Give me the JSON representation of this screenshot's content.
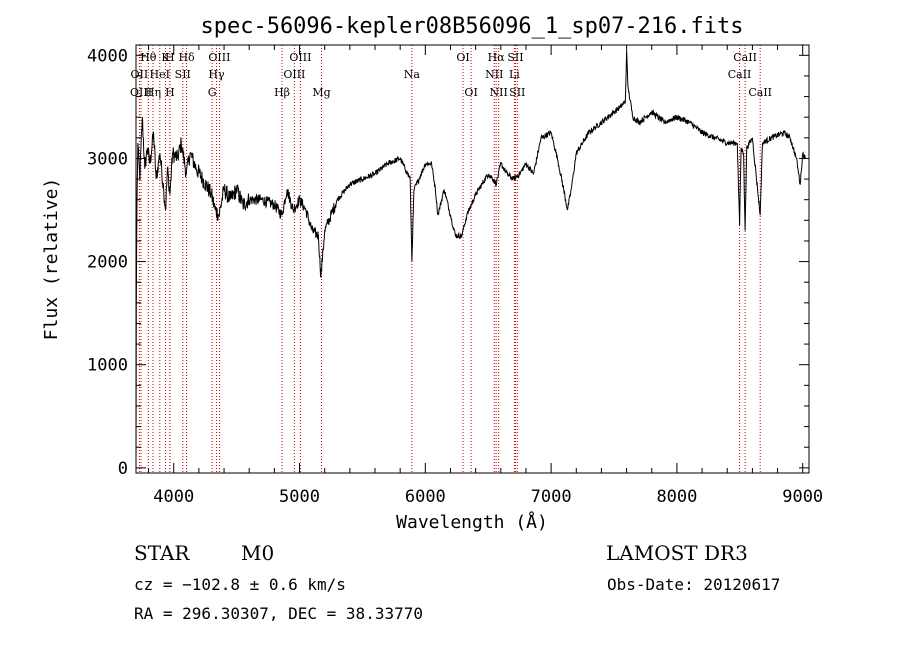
{
  "chart_data": {
    "type": "line",
    "title": "spec-56096-kepler08B56096_1_sp07-216.fits",
    "xlabel": "Wavelength (Å)",
    "ylabel": "Flux (relative)",
    "xlim": [
      3700,
      9050
    ],
    "ylim": [
      -50,
      4100
    ],
    "x_ticks": [
      4000,
      5000,
      6000,
      7000,
      8000,
      9000
    ],
    "y_ticks": [
      0,
      1000,
      2000,
      3000,
      4000
    ],
    "series": [
      {
        "name": "flux",
        "anchors": [
          [
            3700,
            0
          ],
          [
            3702,
            1500
          ],
          [
            3708,
            2600
          ],
          [
            3715,
            3150
          ],
          [
            3730,
            2800
          ],
          [
            3750,
            3400
          ],
          [
            3770,
            2900
          ],
          [
            3790,
            3100
          ],
          [
            3810,
            2950
          ],
          [
            3840,
            3250
          ],
          [
            3860,
            2800
          ],
          [
            3890,
            3050
          ],
          [
            3920,
            2700
          ],
          [
            3935,
            2500
          ],
          [
            3950,
            2900
          ],
          [
            3970,
            2650
          ],
          [
            3990,
            3050
          ],
          [
            4030,
            3000
          ],
          [
            4060,
            3150
          ],
          [
            4100,
            2850
          ],
          [
            4130,
            3050
          ],
          [
            4180,
            2900
          ],
          [
            4230,
            2800
          ],
          [
            4300,
            2650
          ],
          [
            4330,
            2500
          ],
          [
            4360,
            2450
          ],
          [
            4400,
            2700
          ],
          [
            4450,
            2600
          ],
          [
            4500,
            2700
          ],
          [
            4550,
            2550
          ],
          [
            4600,
            2600
          ],
          [
            4700,
            2600
          ],
          [
            4800,
            2550
          ],
          [
            4860,
            2450
          ],
          [
            4900,
            2700
          ],
          [
            4950,
            2500
          ],
          [
            5000,
            2600
          ],
          [
            5050,
            2500
          ],
          [
            5100,
            2300
          ],
          [
            5150,
            2250
          ],
          [
            5170,
            1850
          ],
          [
            5200,
            2300
          ],
          [
            5300,
            2600
          ],
          [
            5400,
            2750
          ],
          [
            5500,
            2800
          ],
          [
            5600,
            2850
          ],
          [
            5700,
            2950
          ],
          [
            5800,
            3000
          ],
          [
            5880,
            2800
          ],
          [
            5893,
            2000
          ],
          [
            5910,
            2700
          ],
          [
            5950,
            2800
          ],
          [
            6000,
            2950
          ],
          [
            6050,
            2950
          ],
          [
            6080,
            2700
          ],
          [
            6100,
            2450
          ],
          [
            6150,
            2700
          ],
          [
            6200,
            2450
          ],
          [
            6240,
            2250
          ],
          [
            6290,
            2250
          ],
          [
            6330,
            2450
          ],
          [
            6400,
            2650
          ],
          [
            6450,
            2750
          ],
          [
            6500,
            2850
          ],
          [
            6540,
            2800
          ],
          [
            6563,
            2750
          ],
          [
            6600,
            2950
          ],
          [
            6650,
            2850
          ],
          [
            6700,
            2800
          ],
          [
            6750,
            2850
          ],
          [
            6800,
            2950
          ],
          [
            6860,
            2850
          ],
          [
            6920,
            3200
          ],
          [
            7000,
            3250
          ],
          [
            7050,
            3000
          ],
          [
            7100,
            2700
          ],
          [
            7130,
            2500
          ],
          [
            7160,
            2700
          ],
          [
            7200,
            3050
          ],
          [
            7300,
            3250
          ],
          [
            7400,
            3350
          ],
          [
            7500,
            3450
          ],
          [
            7550,
            3500
          ],
          [
            7590,
            3550
          ],
          [
            7600,
            4050
          ],
          [
            7610,
            3700
          ],
          [
            7650,
            3400
          ],
          [
            7700,
            3350
          ],
          [
            7800,
            3450
          ],
          [
            7900,
            3350
          ],
          [
            8000,
            3400
          ],
          [
            8100,
            3350
          ],
          [
            8200,
            3250
          ],
          [
            8300,
            3200
          ],
          [
            8400,
            3150
          ],
          [
            8480,
            3150
          ],
          [
            8498,
            2350
          ],
          [
            8510,
            3100
          ],
          [
            8530,
            3050
          ],
          [
            8542,
            2300
          ],
          [
            8555,
            3100
          ],
          [
            8600,
            3200
          ],
          [
            8662,
            2450
          ],
          [
            8680,
            3150
          ],
          [
            8750,
            3200
          ],
          [
            8850,
            3250
          ],
          [
            8900,
            3200
          ],
          [
            8950,
            3000
          ],
          [
            8980,
            2750
          ],
          [
            9000,
            3050
          ],
          [
            9020,
            3000
          ]
        ]
      }
    ],
    "spectral_lines": [
      {
        "label": "Hθ",
        "wavelength": 3798,
        "row": 1
      },
      {
        "label": "OII",
        "wavelength": 3727,
        "row": 2
      },
      {
        "label": "OIII",
        "wavelength": 3740,
        "row": 3
      },
      {
        "label": "K",
        "wavelength": 3934,
        "row": 1
      },
      {
        "label": "H",
        "wavelength": 3969,
        "row": 1
      },
      {
        "label": "HeI",
        "wavelength": 3889,
        "row": 2
      },
      {
        "label": "SII",
        "wavelength": 4072,
        "row": 2
      },
      {
        "label": "Hη",
        "wavelength": 3835,
        "row": 3
      },
      {
        "label": "Hδ",
        "wavelength": 4102,
        "row": 1
      },
      {
        "label": "H",
        "wavelength": 3970,
        "row": 3
      },
      {
        "label": "OIII",
        "wavelength": 4363,
        "row": 1
      },
      {
        "label": "Hγ",
        "wavelength": 4340,
        "row": 2
      },
      {
        "label": "G",
        "wavelength": 4305,
        "row": 3
      },
      {
        "label": "Hβ",
        "wavelength": 4861,
        "row": 3
      },
      {
        "label": "OIII",
        "wavelength": 5007,
        "row": 1
      },
      {
        "label": "OIII",
        "wavelength": 4959,
        "row": 2
      },
      {
        "label": "Mg",
        "wavelength": 5175,
        "row": 3
      },
      {
        "label": "Na",
        "wavelength": 5893,
        "row": 2
      },
      {
        "label": "OI",
        "wavelength": 6300,
        "row": 1
      },
      {
        "label": "OI",
        "wavelength": 6364,
        "row": 3
      },
      {
        "label": "Hα",
        "wavelength": 6563,
        "row": 1
      },
      {
        "label": "SII",
        "wavelength": 6717,
        "row": 1
      },
      {
        "label": "NII",
        "wavelength": 6548,
        "row": 2
      },
      {
        "label": "Li",
        "wavelength": 6708,
        "row": 2
      },
      {
        "label": "NII",
        "wavelength": 6583,
        "row": 3
      },
      {
        "label": "SII",
        "wavelength": 6731,
        "row": 3
      },
      {
        "label": "CaII",
        "wavelength": 8542,
        "row": 1
      },
      {
        "label": "CaII",
        "wavelength": 8498,
        "row": 2
      },
      {
        "label": "CaII",
        "wavelength": 8662,
        "row": 3
      }
    ],
    "line_color": "#000000",
    "marker_color": "#cc0000"
  },
  "info": {
    "object_class": "STAR",
    "subclass": "M0",
    "survey": "LAMOST DR3",
    "redshift": "cz = −102.8 ± 0.6 km/s",
    "obs_date": "Obs-Date: 20120617",
    "coords": "RA = 296.30307, DEC =  38.33770"
  }
}
